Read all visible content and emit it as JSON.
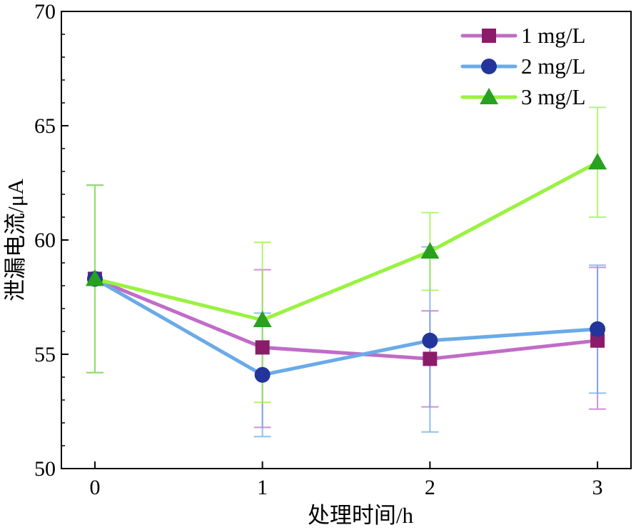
{
  "chart_data": {
    "type": "line",
    "title": "",
    "xlabel": "处理时间/h",
    "ylabel": "泄漏电流/μA",
    "x": [
      0,
      1,
      2,
      3
    ],
    "xlim": [
      -0.2,
      3.2
    ],
    "ylim": [
      50,
      70
    ],
    "yticks": [
      50,
      55,
      60,
      65,
      70
    ],
    "xticks": [
      0,
      1,
      2,
      3
    ],
    "grid": false,
    "legend_position": "top-right",
    "series": [
      {
        "name": "1 mg/L",
        "values": [
          58.3,
          55.3,
          54.8,
          55.6
        ],
        "error_upper": [
          62.4,
          58.7,
          56.9,
          58.8
        ],
        "error_lower": [
          54.2,
          51.8,
          52.7,
          52.6
        ],
        "color": "#c06cc8",
        "marker_color": "#8b1c6a",
        "marker": "square"
      },
      {
        "name": "2 mg/L",
        "values": [
          58.3,
          54.1,
          55.6,
          56.1
        ],
        "error_upper": [
          62.4,
          56.8,
          59.7,
          58.9
        ],
        "error_lower": [
          54.2,
          51.4,
          51.6,
          53.3
        ],
        "color": "#6aaae8",
        "marker_color": "#23359a",
        "marker": "circle"
      },
      {
        "name": "3 mg/L",
        "values": [
          58.3,
          56.5,
          59.5,
          63.4
        ],
        "error_upper": [
          62.4,
          59.9,
          61.2,
          65.8
        ],
        "error_lower": [
          54.2,
          52.9,
          57.8,
          61.0
        ],
        "color": "#99f240",
        "marker_color": "#28a020",
        "marker": "triangle"
      }
    ]
  }
}
